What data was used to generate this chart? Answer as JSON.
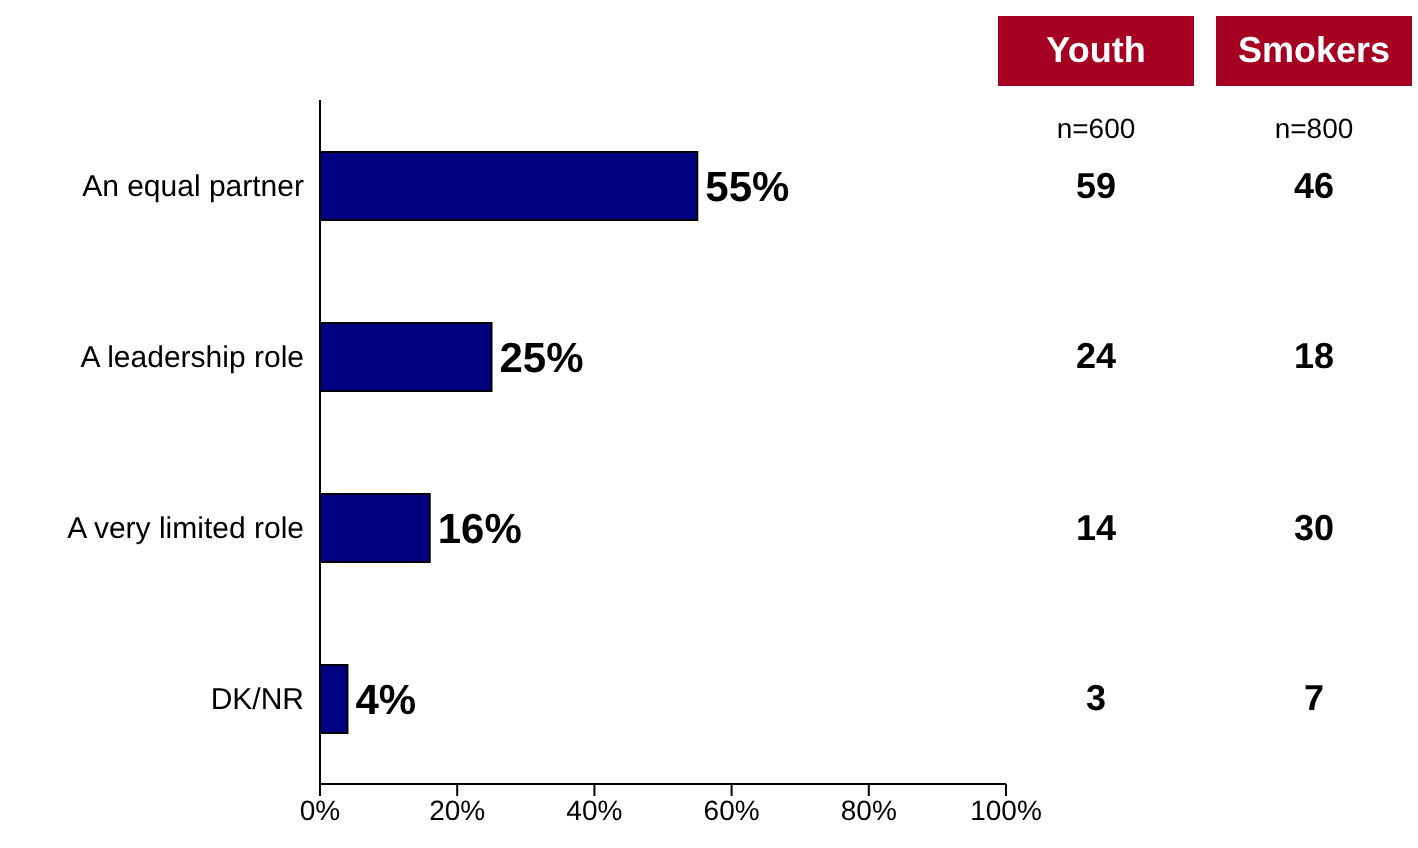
{
  "chart_data": {
    "type": "bar",
    "orientation": "horizontal",
    "categories": [
      "An equal partner",
      "A leadership role",
      "A very limited role",
      "DK/NR"
    ],
    "series": [
      {
        "color": "#000080",
        "values": [
          55,
          25,
          16,
          4
        ],
        "value_labels": [
          "55%",
          "25%",
          "16%",
          "4%"
        ]
      }
    ],
    "xlim": [
      0,
      100
    ],
    "xticks": [
      {
        "value": 0,
        "label": "0%"
      },
      {
        "value": 20,
        "label": "20%"
      },
      {
        "value": 40,
        "label": "40%"
      },
      {
        "value": 60,
        "label": "60%"
      },
      {
        "value": 80,
        "label": "80%"
      },
      {
        "value": 100,
        "label": "100%"
      }
    ],
    "grid": false,
    "legend": false,
    "annotations": [
      "Youth",
      "Smokers",
      "n=600",
      "n=800",
      "59",
      "46",
      "24",
      "18",
      "14",
      "30",
      "3",
      "7"
    ]
  }
}
